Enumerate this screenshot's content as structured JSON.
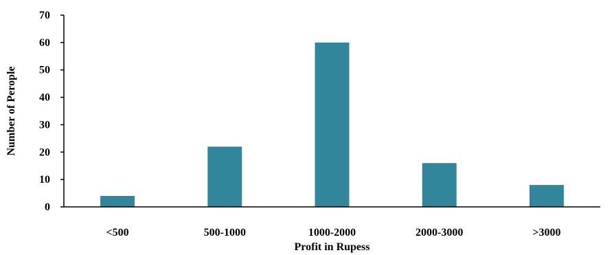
{
  "chart_data": {
    "type": "bar",
    "title": "",
    "xlabel": "Profit in Rupess",
    "ylabel": "Number of Perople",
    "categories": [
      "<500",
      "500-1000",
      "1000-2000",
      "2000-3000",
      ">3000"
    ],
    "values": [
      4,
      22,
      60,
      16,
      8
    ],
    "ylim": [
      0,
      70
    ],
    "yticks": [
      0,
      10,
      20,
      30,
      40,
      50,
      60,
      70
    ],
    "ytick_labels": [
      "0",
      "10",
      "20",
      "30",
      "40",
      "50",
      "60",
      "70"
    ],
    "grid": false,
    "legend": "none",
    "bar_color": "#31869b",
    "axis_color": "#000000"
  }
}
